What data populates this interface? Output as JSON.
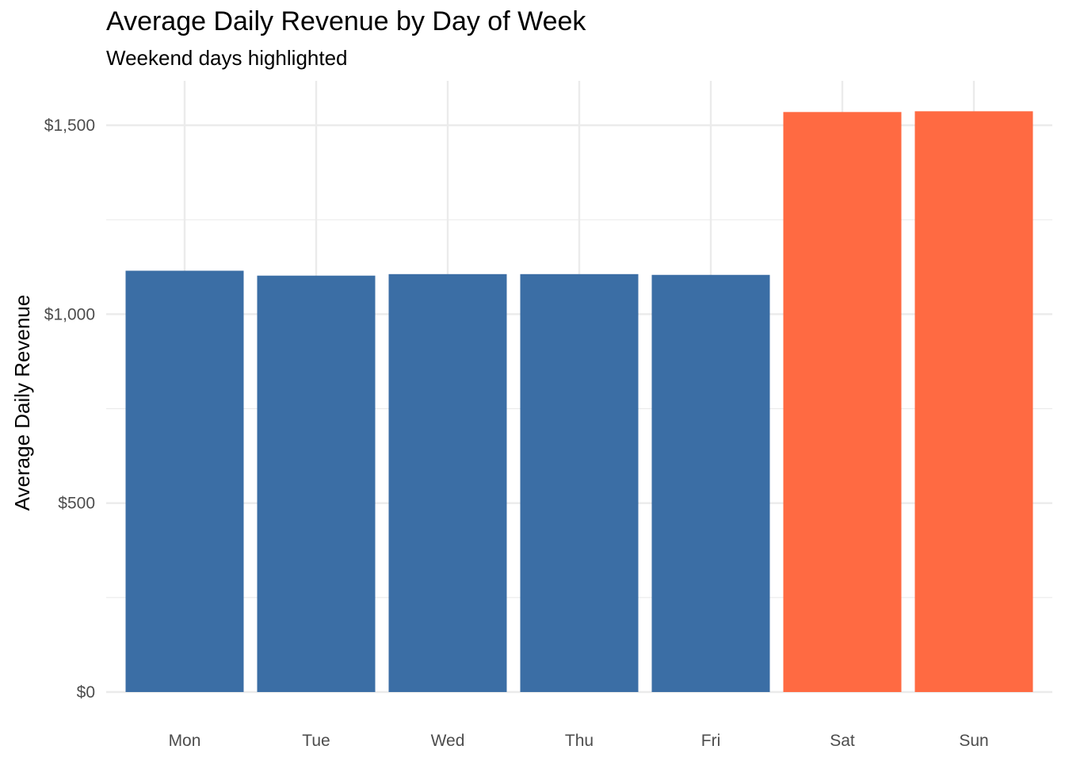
{
  "chart_data": {
    "type": "bar",
    "title": "Average Daily Revenue by Day of Week",
    "subtitle": "Weekend days highlighted",
    "xlabel": "",
    "ylabel": "Average Daily Revenue",
    "categories": [
      "Mon",
      "Tue",
      "Wed",
      "Thu",
      "Fri",
      "Sat",
      "Sun"
    ],
    "values": [
      1115,
      1102,
      1106,
      1106,
      1104,
      1535,
      1537
    ],
    "highlighted": [
      false,
      false,
      false,
      false,
      false,
      true,
      true
    ],
    "colors": {
      "weekday": "#3B6EA5",
      "weekend": "#FF6A42",
      "grid": "#EBEBEB"
    },
    "ylim": [
      0,
      1600
    ],
    "yticks": [
      0,
      500,
      1000,
      1500
    ],
    "ytick_labels": [
      "$0",
      "$500",
      "$1,000",
      "$1,500"
    ],
    "grid": true,
    "legend": "none"
  }
}
